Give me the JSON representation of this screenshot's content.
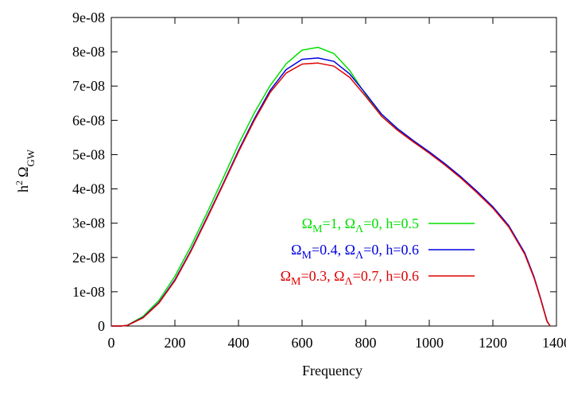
{
  "chart_data": {
    "type": "line",
    "title": "",
    "xlabel": "Frequency",
    "ylabel_main": "h",
    "ylabel_sup": "2",
    "ylabel_omega": "Ω",
    "ylabel_sub": "GW",
    "xlim": [
      0,
      1400
    ],
    "ylim": [
      0,
      9e-08
    ],
    "x_ticks": [
      0,
      200,
      400,
      600,
      800,
      1000,
      1200,
      1400
    ],
    "x_tick_labels": [
      "0",
      "200",
      "400",
      "600",
      "800",
      "1000",
      "1200",
      "1400"
    ],
    "y_ticks": [
      0,
      1e-08,
      2e-08,
      3e-08,
      4e-08,
      5e-08,
      6e-08,
      7e-08,
      8e-08,
      9e-08
    ],
    "y_tick_labels": [
      "0",
      "1e-08",
      "2e-08",
      "3e-08",
      "4e-08",
      "5e-08",
      "6e-08",
      "7e-08",
      "8e-08",
      "9e-08"
    ],
    "grid": false,
    "legend_position": "right",
    "x": [
      0,
      30,
      50,
      100,
      150,
      200,
      250,
      300,
      350,
      400,
      450,
      500,
      550,
      600,
      650,
      700,
      750,
      800,
      850,
      900,
      950,
      1000,
      1050,
      1100,
      1150,
      1200,
      1250,
      1300,
      1330,
      1350,
      1370,
      1380
    ],
    "series": [
      {
        "label": {
          "omega_m": "Ω",
          "sub_m": "M",
          "eq_m": "=1, ",
          "omega_l": "Ω",
          "sub_l": "Λ",
          "eq_l": "=0, h=0.5"
        },
        "color": "#00e000",
        "values": [
          0,
          0,
          2e-10,
          2.8e-09,
          7.5e-09,
          1.45e-08,
          2.32e-08,
          3.28e-08,
          4.28e-08,
          5.3e-08,
          6.22e-08,
          7.02e-08,
          7.65e-08,
          8.05e-08,
          8.13e-08,
          7.95e-08,
          7.45e-08,
          6.75e-08,
          6.12e-08,
          5.72e-08,
          5.38e-08,
          5.05e-08,
          4.7e-08,
          4.32e-08,
          3.9e-08,
          3.45e-08,
          2.9e-08,
          2.12e-08,
          1.4e-08,
          8e-09,
          1.5e-09,
          0
        ]
      },
      {
        "label": {
          "omega_m": "Ω",
          "sub_m": "M",
          "eq_m": "=0.4, ",
          "omega_l": "Ω",
          "sub_l": "Λ",
          "eq_l": "=0, h=0.6"
        },
        "color": "#0000e0",
        "values": [
          0,
          0,
          1.8e-10,
          2.5e-09,
          6.9e-09,
          1.35e-08,
          2.2e-08,
          3.15e-08,
          4.12e-08,
          5.12e-08,
          6.05e-08,
          6.88e-08,
          7.48e-08,
          7.78e-08,
          7.82e-08,
          7.72e-08,
          7.35e-08,
          6.78e-08,
          6.18e-08,
          5.76e-08,
          5.41e-08,
          5.08e-08,
          4.73e-08,
          4.35e-08,
          3.93e-08,
          3.48e-08,
          2.93e-08,
          2.14e-08,
          1.42e-08,
          8.1e-09,
          1.5e-09,
          0
        ]
      },
      {
        "label": {
          "omega_m": "Ω",
          "sub_m": "M",
          "eq_m": "=0.3, ",
          "omega_l": "Ω",
          "sub_l": "Λ",
          "eq_l": "=0.7, h=0.6"
        },
        "color": "#e00000",
        "values": [
          0,
          0,
          1.7e-10,
          2.4e-09,
          6.7e-09,
          1.32e-08,
          2.17e-08,
          3.12e-08,
          4.09e-08,
          5.08e-08,
          6e-08,
          6.82e-08,
          7.38e-08,
          7.64e-08,
          7.67e-08,
          7.58e-08,
          7.25e-08,
          6.7e-08,
          6.12e-08,
          5.71e-08,
          5.37e-08,
          5.04e-08,
          4.69e-08,
          4.31e-08,
          3.89e-08,
          3.44e-08,
          2.89e-08,
          2.1e-08,
          1.39e-08,
          7.9e-09,
          1.4e-09,
          0
        ]
      }
    ]
  }
}
